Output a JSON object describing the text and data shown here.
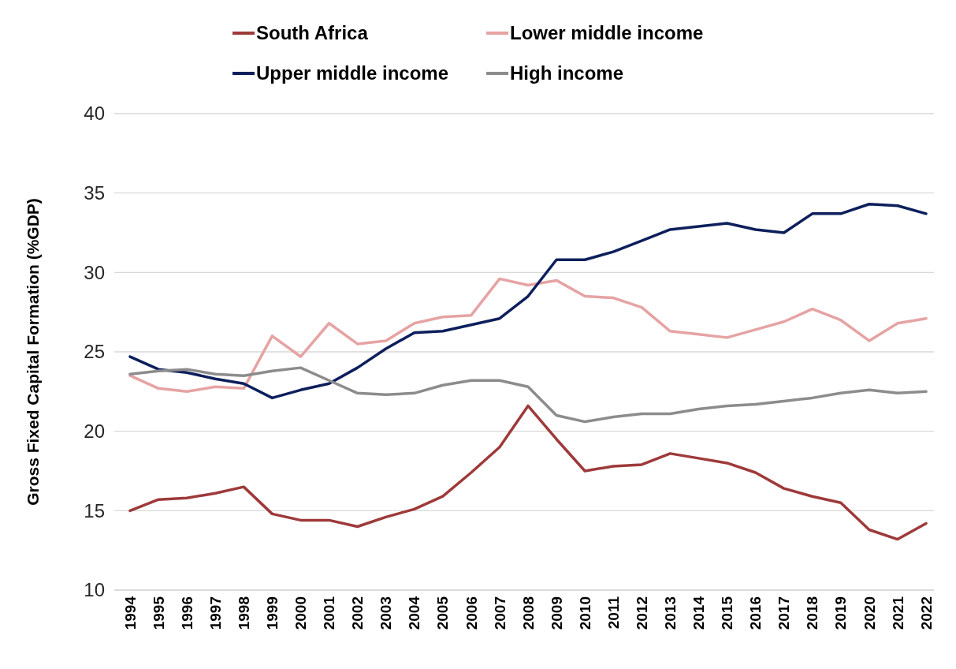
{
  "chart_data": {
    "type": "line",
    "ylabel": "Gross Fixed Capital Formation (%GDP)",
    "categories": [
      "1994",
      "1995",
      "1996",
      "1997",
      "1998",
      "1999",
      "2000",
      "2001",
      "2002",
      "2003",
      "2004",
      "2005",
      "2006",
      "2007",
      "2008",
      "2009",
      "2010",
      "2011",
      "2012",
      "2013",
      "2014",
      "2015",
      "2016",
      "2017",
      "2018",
      "2019",
      "2020",
      "2021",
      "2022"
    ],
    "ylim": [
      10,
      40
    ],
    "yticks": [
      10,
      15,
      20,
      25,
      30,
      35,
      40
    ],
    "grid": "y",
    "legend": "top",
    "line_style": "solid",
    "marker": "none",
    "series": [
      {
        "name": "South Africa",
        "color": "#9e3a3a",
        "values": [
          15.0,
          15.7,
          15.8,
          16.1,
          16.5,
          14.8,
          14.4,
          14.4,
          14.0,
          14.6,
          15.1,
          15.9,
          17.4,
          19.0,
          21.6,
          19.5,
          17.5,
          17.8,
          17.9,
          18.6,
          18.3,
          18.0,
          17.4,
          16.4,
          15.9,
          15.5,
          13.8,
          13.2,
          14.2
        ]
      },
      {
        "name": "Lower middle income",
        "color": "#e6a3a3",
        "values": [
          23.5,
          22.7,
          22.5,
          22.8,
          22.7,
          26.0,
          24.7,
          26.8,
          25.5,
          25.7,
          26.8,
          27.2,
          27.3,
          29.6,
          29.2,
          29.5,
          28.5,
          28.4,
          27.8,
          26.3,
          26.1,
          25.9,
          26.4,
          26.9,
          27.7,
          27.0,
          25.7,
          26.8,
          27.1
        ]
      },
      {
        "name": "Upper middle income",
        "color": "#0d1f5c",
        "values": [
          24.7,
          23.9,
          23.7,
          23.3,
          23.0,
          22.1,
          22.6,
          23.0,
          24.0,
          25.2,
          26.2,
          26.3,
          26.7,
          27.1,
          28.5,
          30.8,
          30.8,
          31.3,
          32.0,
          32.7,
          32.9,
          33.1,
          32.7,
          32.5,
          33.7,
          33.7,
          34.3,
          34.2,
          33.7
        ]
      },
      {
        "name": "High income",
        "color": "#8c8c8c",
        "values": [
          23.6,
          23.8,
          23.9,
          23.6,
          23.5,
          23.8,
          24.0,
          23.2,
          22.4,
          22.3,
          22.4,
          22.9,
          23.2,
          23.2,
          22.8,
          21.0,
          20.6,
          20.9,
          21.1,
          21.1,
          21.4,
          21.6,
          21.7,
          21.9,
          22.1,
          22.4,
          22.6,
          22.4,
          22.5
        ]
      }
    ]
  }
}
